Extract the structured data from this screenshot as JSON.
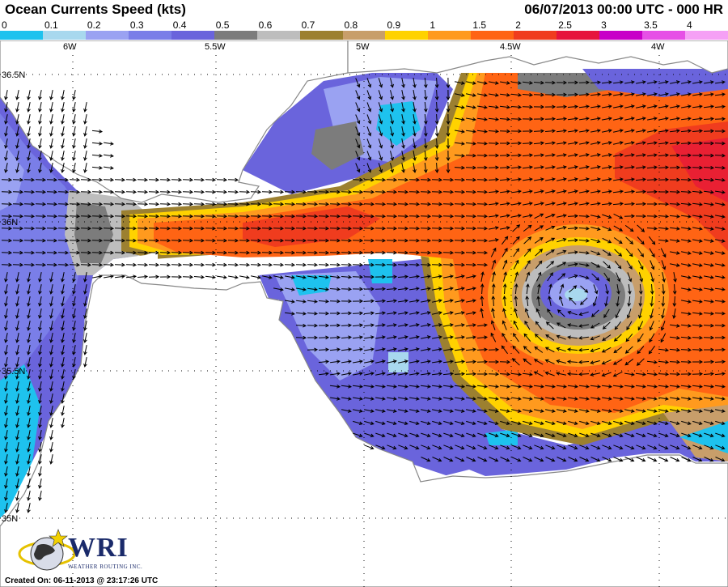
{
  "header": {
    "title": "Ocean Currents Speed (kts)",
    "timestamp": "06/07/2013 00:00 UTC - 000 HR"
  },
  "legend": {
    "items": [
      {
        "label": "0",
        "color": "#1ec2ee"
      },
      {
        "label": "0.1",
        "color": "#a8d8ee"
      },
      {
        "label": "0.2",
        "color": "#9aa2f2"
      },
      {
        "label": "0.3",
        "color": "#7a7ee8"
      },
      {
        "label": "0.4",
        "color": "#6a64dc"
      },
      {
        "label": "0.5",
        "color": "#7c7c7c"
      },
      {
        "label": "0.6",
        "color": "#bdbdbd"
      },
      {
        "label": "0.7",
        "color": "#9c8030"
      },
      {
        "label": "0.8",
        "color": "#c89e6a"
      },
      {
        "label": "0.9",
        "color": "#ffd200"
      },
      {
        "label": "1",
        "color": "#ff9a1e"
      },
      {
        "label": "1.5",
        "color": "#ff6414"
      },
      {
        "label": "2",
        "color": "#f03c1e"
      },
      {
        "label": "2.5",
        "color": "#e6143c"
      },
      {
        "label": "3",
        "color": "#c800c8"
      },
      {
        "label": "3.5",
        "color": "#e650e6"
      },
      {
        "label": "4",
        "color": "#f5a0f5"
      }
    ]
  },
  "map": {
    "longitude_labels": [
      "6W",
      "5.5W",
      "5W",
      "4.5W",
      "4W"
    ],
    "latitude_labels": [
      "36.5N",
      "36N",
      "35.5N",
      "35N"
    ],
    "colors": {
      "land": "#ffffff",
      "coastline": "#888888",
      "arrow": "#000000"
    }
  },
  "logo": {
    "name": "WRI",
    "subtitle": "WEATHER ROUTING INC."
  },
  "footer": {
    "created": "Created On: 06-11-2013 @ 23:17:26 UTC"
  }
}
